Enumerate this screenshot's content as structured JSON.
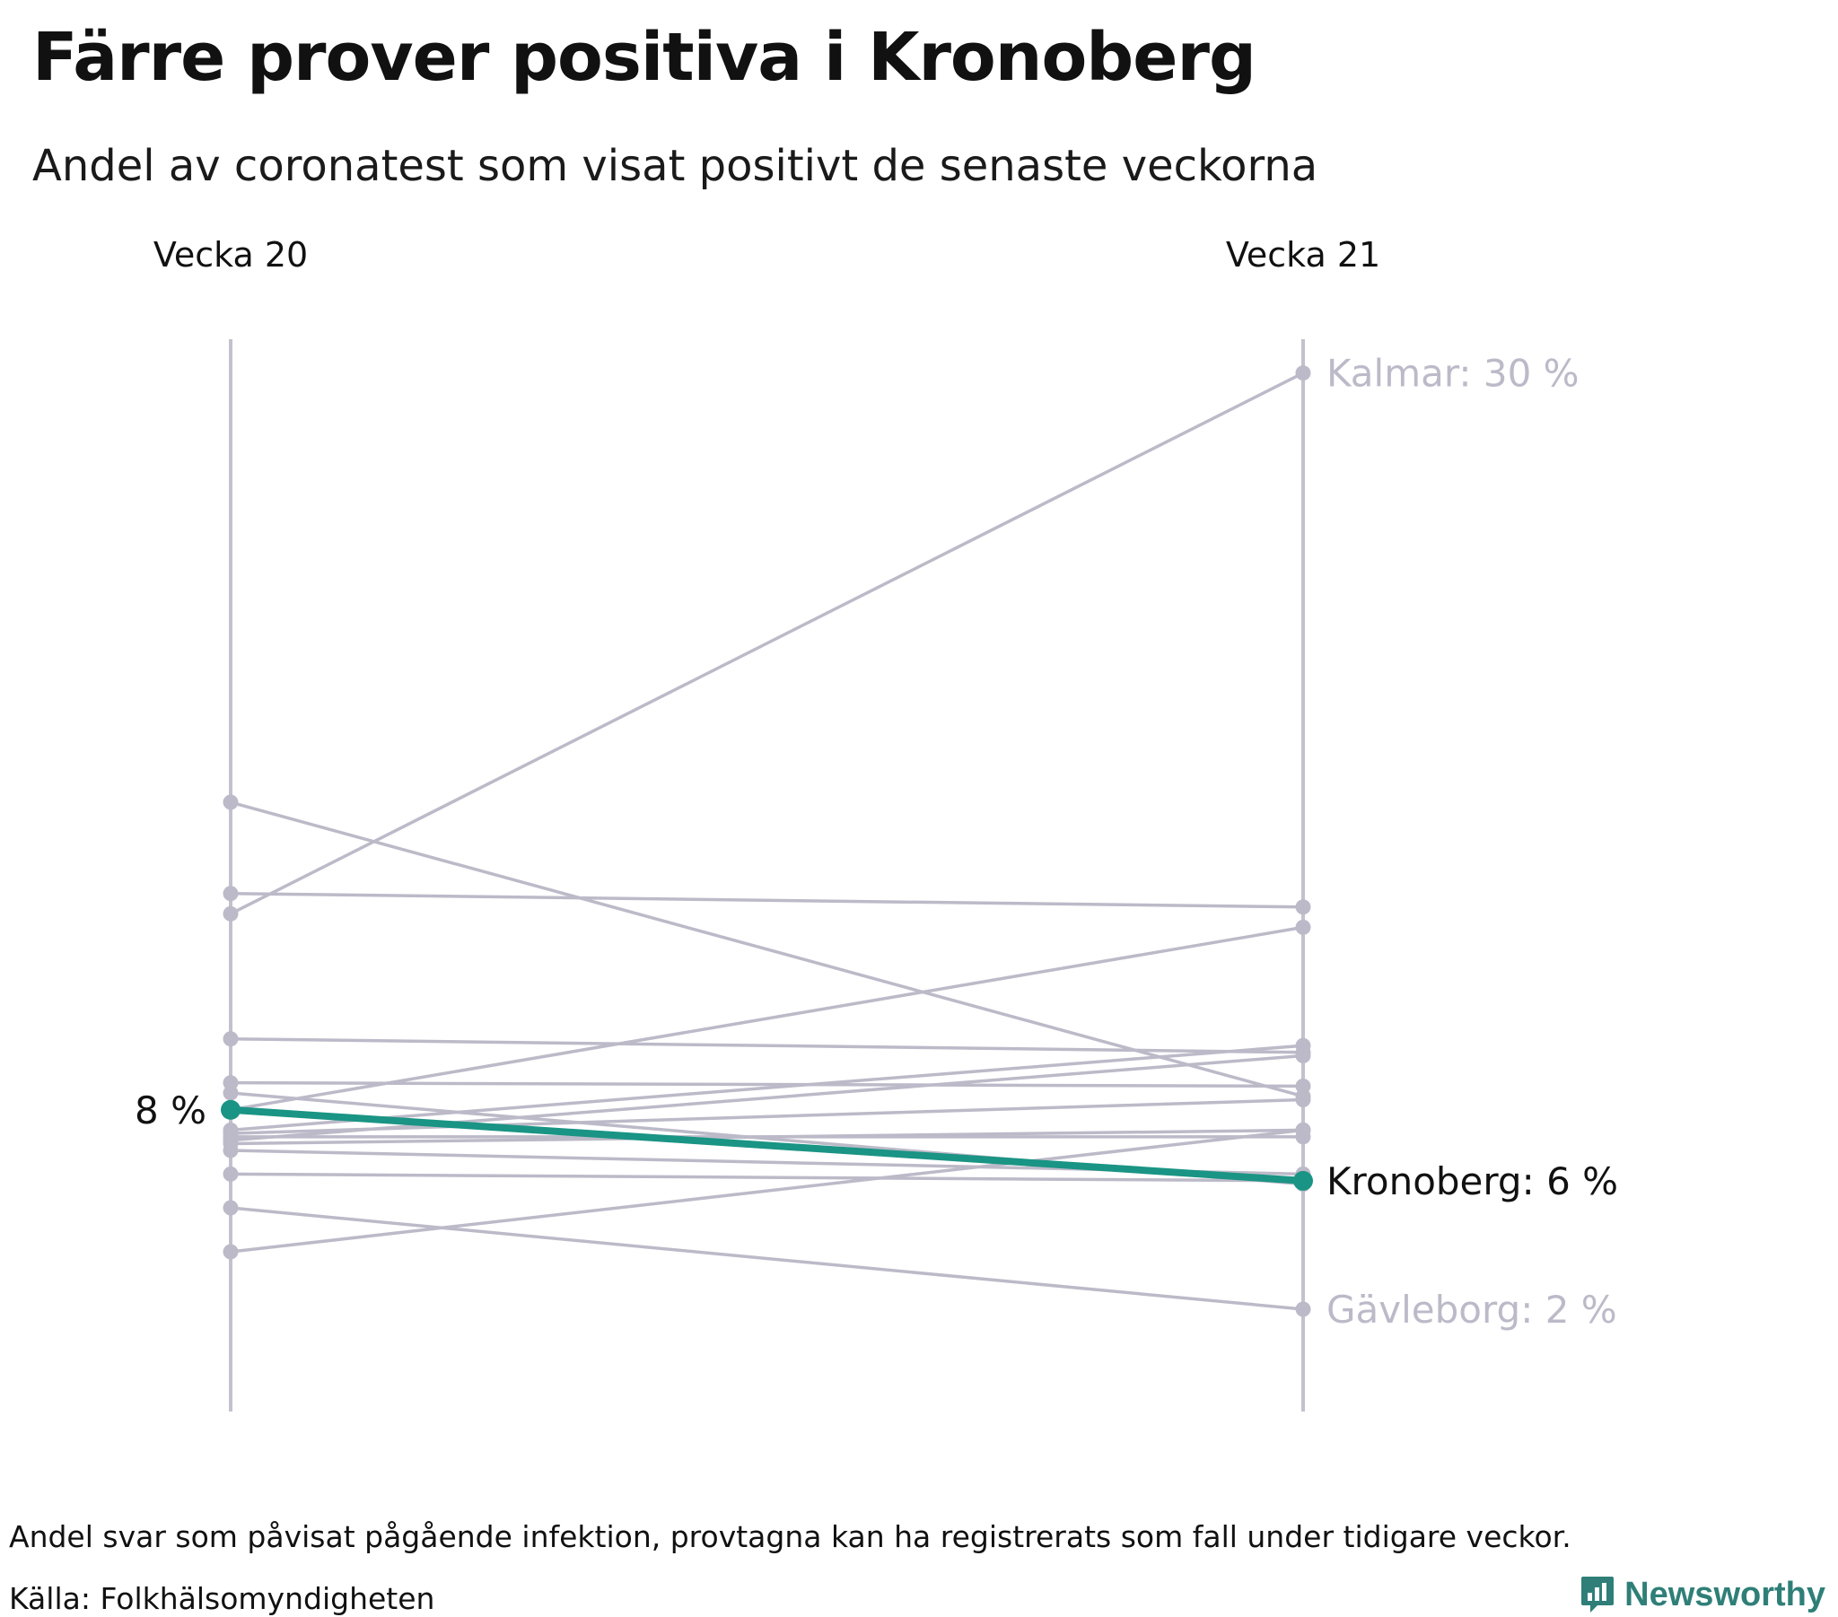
{
  "title": "Färre prover positiva i Kronoberg",
  "subtitle": "Andel av coronatest som visat positivt de senaste veckorna",
  "footnote": "Andel svar som påvisat pågående infektion, provtagna kan ha registrerats som fall under tidigare veckor.",
  "source": "Källa: Folkhälsomyndigheten",
  "brand": {
    "name": "Newsworthy",
    "icon": "newsworthy-logo-icon",
    "color": "#2f7f78"
  },
  "colors": {
    "highlight": "#1a9484",
    "muted": "#bcbac8",
    "muted_text": "#bcbac8",
    "axis": "#c3c1cd",
    "text": "#111111"
  },
  "chart_data": {
    "type": "slope",
    "x": [
      "Vecka 20",
      "Vecka 21"
    ],
    "unit": "%",
    "ylim": [
      1,
      31
    ],
    "grid": false,
    "legend": "none",
    "highlight": {
      "name": "Kronoberg",
      "values": [
        8.2,
        6.1
      ],
      "start_label": "8 %",
      "end_label": "Kronoberg: 6 %"
    },
    "labeled_series": [
      {
        "name": "Kalmar",
        "values": [
          14.0,
          30.0
        ],
        "end_label": "Kalmar: 30 %"
      },
      {
        "name": "Gävleborg",
        "values": [
          5.3,
          2.3
        ],
        "end_label": "Gävleborg: 2 %"
      }
    ],
    "series": [
      {
        "values": [
          17.3,
          8.6
        ]
      },
      {
        "values": [
          14.6,
          14.2
        ]
      },
      {
        "values": [
          10.3,
          9.9
        ]
      },
      {
        "values": [
          9.0,
          8.9
        ]
      },
      {
        "values": [
          8.7,
          6.0
        ]
      },
      {
        "values": [
          8.2,
          13.6
        ]
      },
      {
        "values": [
          7.6,
          10.1
        ]
      },
      {
        "values": [
          7.5,
          8.5
        ]
      },
      {
        "values": [
          7.4,
          7.4
        ]
      },
      {
        "values": [
          7.3,
          9.8
        ]
      },
      {
        "values": [
          7.2,
          7.6
        ]
      },
      {
        "values": [
          7.0,
          6.3
        ]
      },
      {
        "values": [
          6.3,
          6.1
        ]
      },
      {
        "values": [
          4.0,
          7.6
        ]
      }
    ]
  }
}
